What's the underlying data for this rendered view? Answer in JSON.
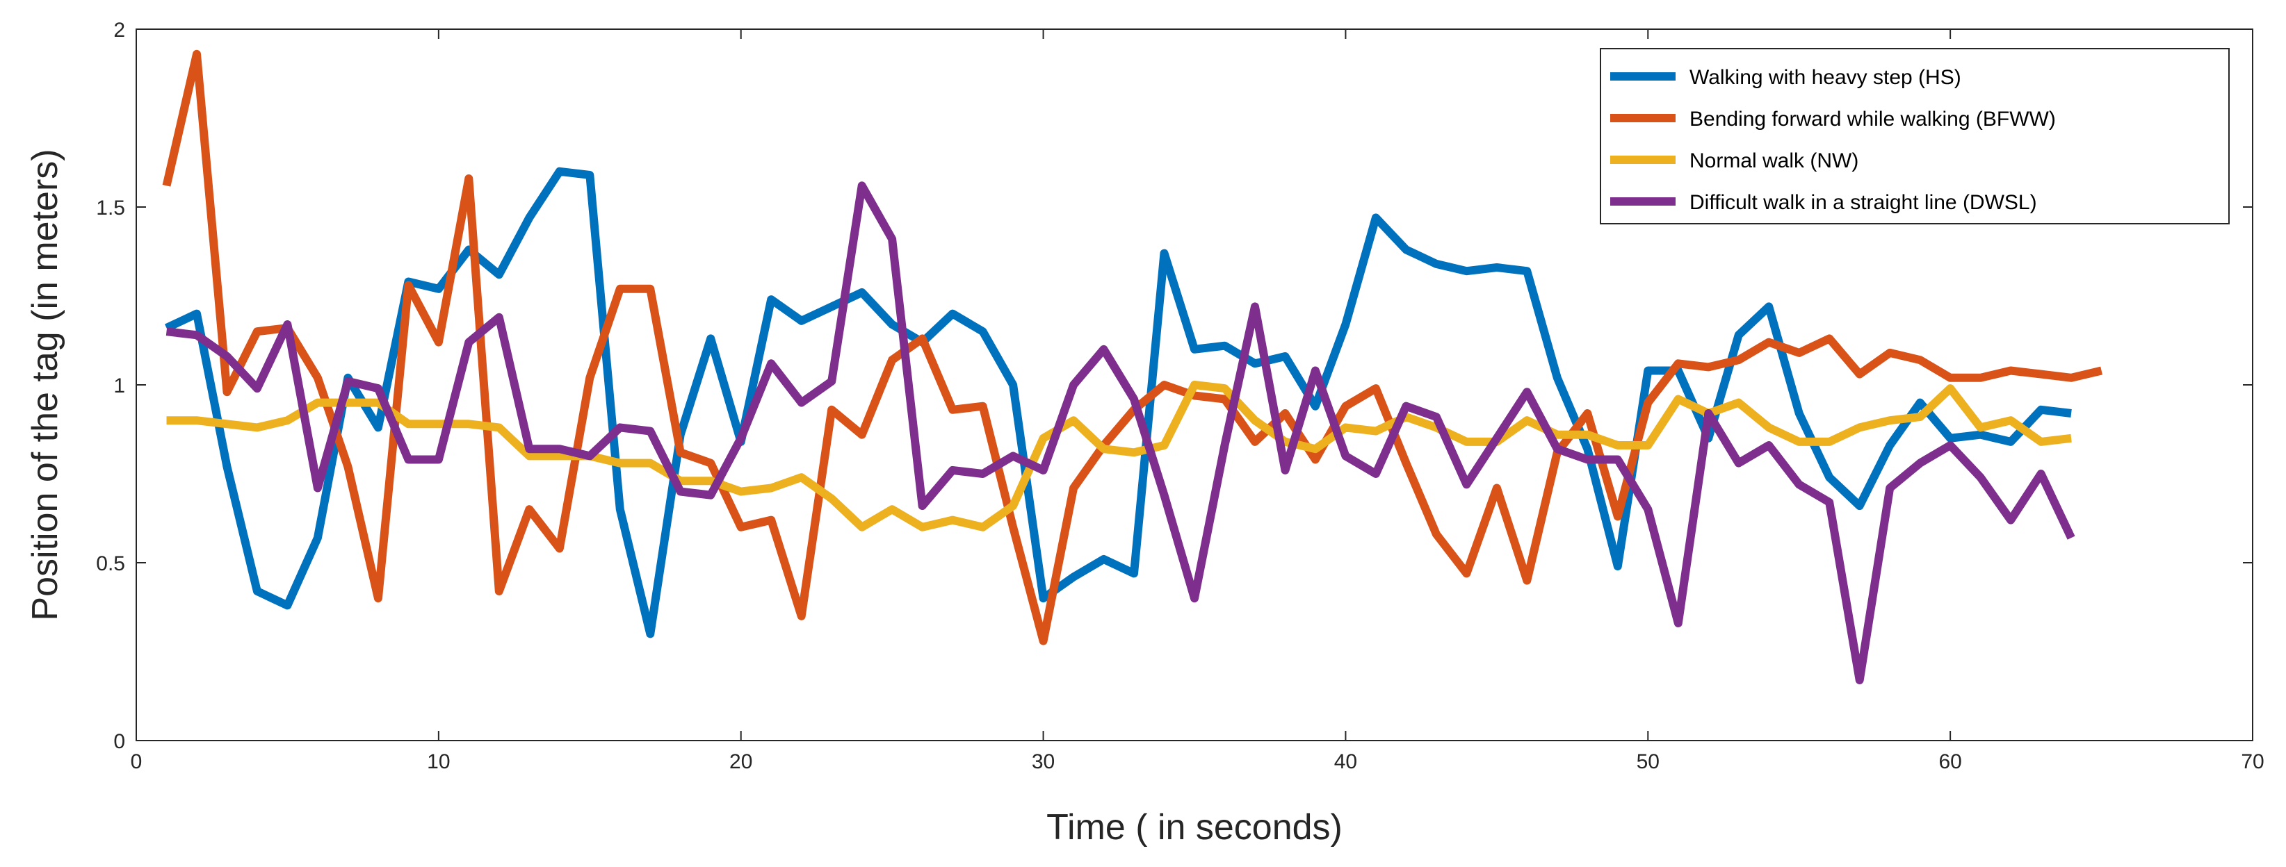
{
  "chart_data": {
    "type": "line",
    "title": "",
    "xlabel": "Time ( in seconds)",
    "ylabel": "Position of the tag (in meters)",
    "xlim": [
      0,
      70
    ],
    "ylim": [
      0,
      2
    ],
    "xticks": [
      0,
      10,
      20,
      30,
      40,
      50,
      60,
      70
    ],
    "yticks": [
      0,
      0.5,
      1,
      1.5,
      2
    ],
    "xtick_labels": [
      "0",
      "10",
      "20",
      "30",
      "40",
      "50",
      "60",
      "70"
    ],
    "ytick_labels": [
      "0",
      "0.5",
      "1",
      "1.5",
      "2"
    ],
    "grid": false,
    "legend_position": "top-right",
    "series": [
      {
        "name": "Walking with heavy step (HS)",
        "color": "#0072BD",
        "x": [
          1,
          2,
          3,
          4,
          5,
          6,
          7,
          8,
          9,
          10,
          11,
          12,
          13,
          14,
          15,
          16,
          17,
          18,
          19,
          20,
          21,
          22,
          23,
          24,
          25,
          26,
          27,
          28,
          29,
          30,
          31,
          32,
          33,
          34,
          35,
          36,
          37,
          38,
          39,
          40,
          41,
          42,
          43,
          44,
          45,
          46,
          47,
          48,
          49,
          50,
          51,
          52,
          53,
          54,
          55,
          56,
          57,
          58,
          59,
          60,
          61,
          62,
          63,
          64
        ],
        "y": [
          1.16,
          1.2,
          0.77,
          0.42,
          0.38,
          0.57,
          1.02,
          0.88,
          1.29,
          1.27,
          1.38,
          1.31,
          1.47,
          1.6,
          1.59,
          0.65,
          0.3,
          0.86,
          1.13,
          0.84,
          1.24,
          1.18,
          1.22,
          1.26,
          1.17,
          1.12,
          1.2,
          1.15,
          1.0,
          0.4,
          0.46,
          0.51,
          0.47,
          1.37,
          1.1,
          1.11,
          1.06,
          1.08,
          0.94,
          1.17,
          1.47,
          1.38,
          1.34,
          1.32,
          1.33,
          1.32,
          1.02,
          0.82,
          0.49,
          1.04,
          1.04,
          0.85,
          1.14,
          1.22,
          0.92,
          0.74,
          0.66,
          0.83,
          0.95,
          0.85,
          0.86,
          0.84,
          0.93,
          0.92
        ]
      },
      {
        "name": "Bending forward while walking (BFWW)",
        "color": "#D95319",
        "x": [
          1,
          2,
          3,
          4,
          5,
          6,
          7,
          8,
          9,
          10,
          11,
          12,
          13,
          14,
          15,
          16,
          17,
          18,
          19,
          20,
          21,
          22,
          23,
          24,
          25,
          26,
          27,
          28,
          29,
          30,
          31,
          32,
          33,
          34,
          35,
          36,
          37,
          38,
          39,
          40,
          41,
          42,
          43,
          44,
          45,
          46,
          47,
          48,
          49,
          50,
          51,
          52,
          53,
          54,
          55,
          56,
          57,
          58,
          59,
          60,
          61,
          62,
          63,
          64,
          65
        ],
        "y": [
          1.56,
          1.93,
          0.98,
          1.15,
          1.16,
          1.02,
          0.77,
          0.4,
          1.28,
          1.12,
          1.58,
          0.42,
          0.65,
          0.54,
          1.02,
          1.27,
          1.27,
          0.81,
          0.78,
          0.6,
          0.62,
          0.35,
          0.93,
          0.86,
          1.07,
          1.13,
          0.93,
          0.94,
          0.6,
          0.28,
          0.71,
          0.83,
          0.93,
          1.0,
          0.97,
          0.96,
          0.84,
          0.92,
          0.79,
          0.94,
          0.99,
          0.78,
          0.58,
          0.47,
          0.71,
          0.45,
          0.81,
          0.92,
          0.63,
          0.95,
          1.06,
          1.05,
          1.07,
          1.12,
          1.09,
          1.13,
          1.03,
          1.09,
          1.07,
          1.02,
          1.02,
          1.04,
          1.03,
          1.02,
          1.04
        ]
      },
      {
        "name": "Normal walk (NW)",
        "color": "#EDB120",
        "x": [
          1,
          2,
          3,
          4,
          5,
          6,
          7,
          8,
          9,
          10,
          11,
          12,
          13,
          14,
          15,
          16,
          17,
          18,
          19,
          20,
          21,
          22,
          23,
          24,
          25,
          26,
          27,
          28,
          29,
          30,
          31,
          32,
          33,
          34,
          35,
          36,
          37,
          38,
          39,
          40,
          41,
          42,
          43,
          44,
          45,
          46,
          47,
          48,
          49,
          50,
          51,
          52,
          53,
          54,
          55,
          56,
          57,
          58,
          59,
          60,
          61,
          62,
          63,
          64
        ],
        "y": [
          0.9,
          0.9,
          0.89,
          0.88,
          0.9,
          0.95,
          0.95,
          0.95,
          0.89,
          0.89,
          0.89,
          0.88,
          0.8,
          0.8,
          0.8,
          0.78,
          0.78,
          0.73,
          0.73,
          0.7,
          0.71,
          0.74,
          0.68,
          0.6,
          0.65,
          0.6,
          0.62,
          0.6,
          0.66,
          0.85,
          0.9,
          0.82,
          0.81,
          0.83,
          1.0,
          0.99,
          0.9,
          0.84,
          0.82,
          0.88,
          0.87,
          0.91,
          0.88,
          0.84,
          0.84,
          0.9,
          0.86,
          0.86,
          0.83,
          0.83,
          0.96,
          0.92,
          0.95,
          0.88,
          0.84,
          0.84,
          0.88,
          0.9,
          0.91,
          0.99,
          0.88,
          0.9,
          0.84,
          0.85
        ]
      },
      {
        "name": "Difficult walk in a straight line (DWSL)",
        "color": "#7E2F8E",
        "x": [
          1,
          2,
          3,
          4,
          5,
          6,
          7,
          8,
          9,
          10,
          11,
          12,
          13,
          14,
          15,
          16,
          17,
          18,
          19,
          20,
          21,
          22,
          23,
          24,
          25,
          26,
          27,
          28,
          29,
          30,
          31,
          32,
          33,
          34,
          35,
          36,
          37,
          38,
          39,
          40,
          41,
          42,
          43,
          44,
          45,
          46,
          47,
          48,
          49,
          50,
          51,
          52,
          53,
          54,
          55,
          56,
          57,
          58,
          59,
          60,
          61,
          62,
          63,
          64
        ],
        "y": [
          1.15,
          1.14,
          1.08,
          0.99,
          1.17,
          0.71,
          1.01,
          0.99,
          0.79,
          0.79,
          1.12,
          1.19,
          0.82,
          0.82,
          0.8,
          0.88,
          0.87,
          0.7,
          0.69,
          0.85,
          1.06,
          0.95,
          1.01,
          1.56,
          1.41,
          0.66,
          0.76,
          0.75,
          0.8,
          0.76,
          1.0,
          1.1,
          0.96,
          0.69,
          0.4,
          0.83,
          1.22,
          0.76,
          1.04,
          0.8,
          0.75,
          0.94,
          0.91,
          0.72,
          0.85,
          0.98,
          0.82,
          0.79,
          0.79,
          0.65,
          0.33,
          0.92,
          0.78,
          0.83,
          0.72,
          0.67,
          0.17,
          0.71,
          0.78,
          0.83,
          0.74,
          0.62,
          0.75,
          0.57
        ]
      }
    ]
  }
}
